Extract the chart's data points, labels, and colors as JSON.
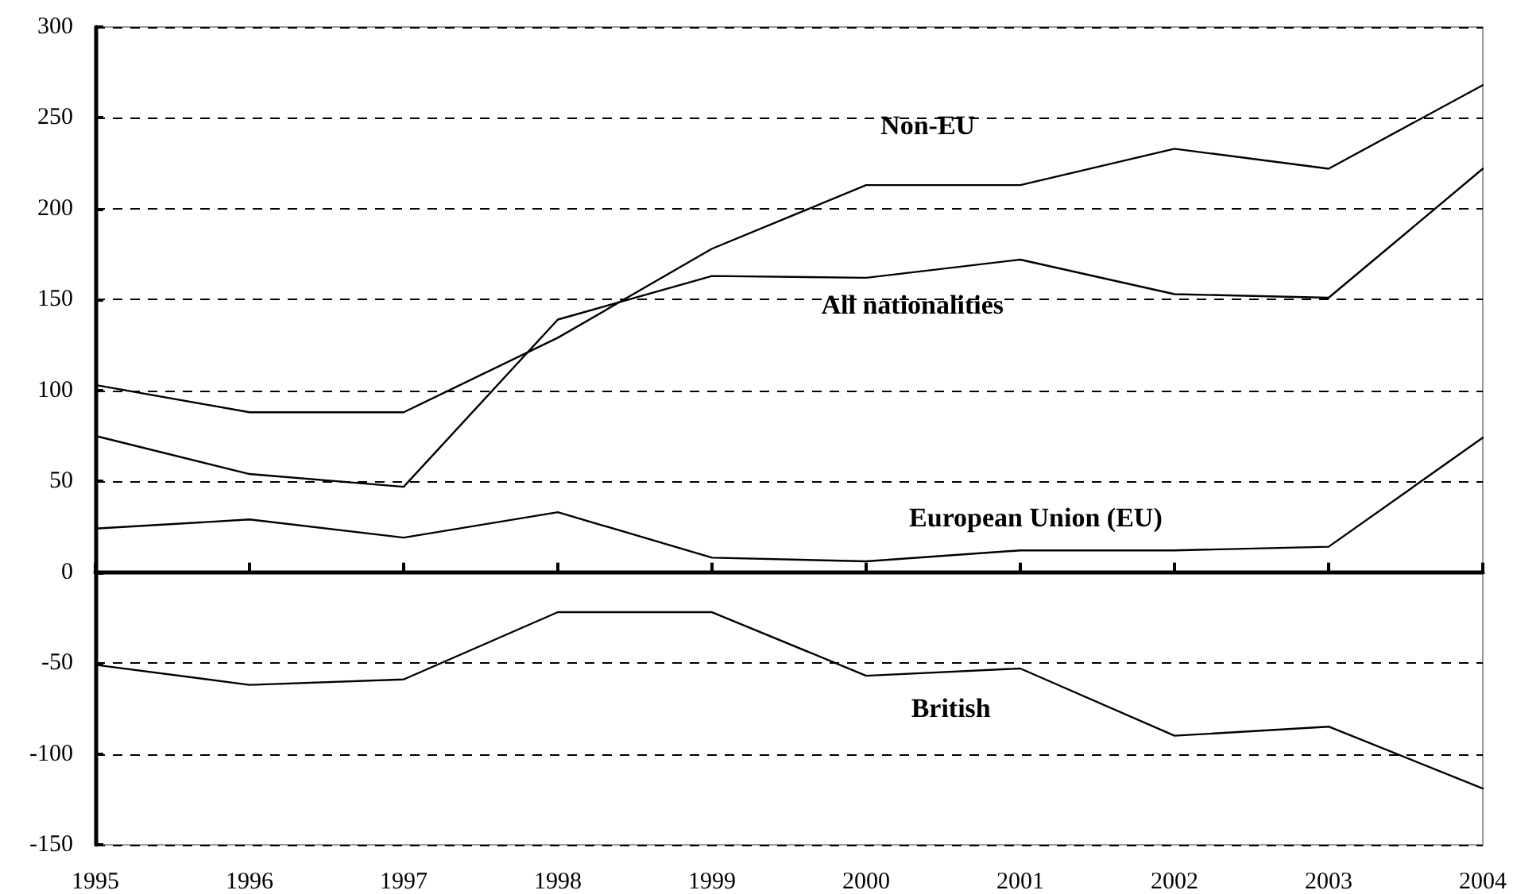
{
  "chart_data": {
    "type": "line",
    "categories": [
      "1995",
      "1996",
      "1997",
      "1998",
      "1999",
      "2000",
      "2001",
      "2002",
      "2003",
      "2004"
    ],
    "series": [
      {
        "name": "Non-EU",
        "color": "#000000",
        "values": [
          103,
          88,
          88,
          129,
          178,
          213,
          213,
          233,
          222,
          268
        ]
      },
      {
        "name": "All nationalities",
        "color": "#000000",
        "values": [
          75,
          54,
          47,
          139,
          163,
          162,
          172,
          153,
          151,
          222
        ]
      },
      {
        "name": "European Union (EU)",
        "color": "#000000",
        "values": [
          24,
          29,
          19,
          33,
          8,
          6,
          12,
          12,
          14,
          74
        ]
      },
      {
        "name": "British",
        "color": "#000000",
        "values": [
          -51,
          -62,
          -59,
          -22,
          -22,
          -57,
          -53,
          -90,
          -85,
          -119
        ]
      }
    ],
    "ylim": [
      -150,
      300
    ],
    "yticks": [
      -150,
      -100,
      -50,
      0,
      50,
      100,
      150,
      200,
      250,
      300
    ],
    "grid": "y",
    "legend": false,
    "marker": "none",
    "line_style": "solid"
  }
}
